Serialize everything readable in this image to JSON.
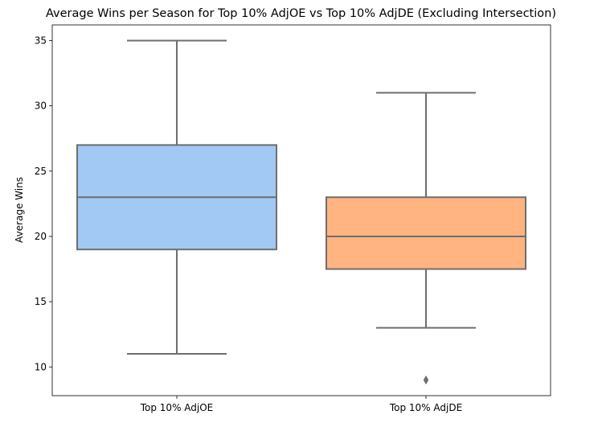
{
  "chart_data": {
    "type": "box",
    "title": "Average Wins per Season for Top 10% AdjOE vs Top 10% AdjDE (Excluding Intersection)",
    "xlabel": "",
    "ylabel": "Average Wins",
    "ylim": [
      7.8,
      36.2
    ],
    "yticks": [
      10,
      15,
      20,
      25,
      30,
      35
    ],
    "grid": false,
    "legend": "none",
    "categories": [
      "Top 10% AdjOE",
      "Top 10% AdjDE"
    ],
    "boxes": [
      {
        "category": "Top 10% AdjOE",
        "whisker_low": 11,
        "q1": 19,
        "median": 23,
        "q3": 27,
        "whisker_high": 35,
        "outliers": [],
        "color": "#a1c9f4"
      },
      {
        "category": "Top 10% AdjDE",
        "whisker_low": 13,
        "q1": 17.5,
        "median": 20,
        "q3": 23,
        "whisker_high": 31,
        "outliers": [
          9
        ],
        "color": "#ffb482"
      }
    ]
  }
}
